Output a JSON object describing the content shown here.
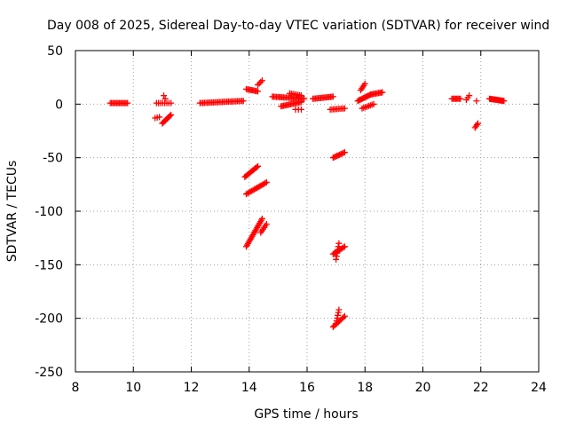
{
  "chart_data": {
    "type": "scatter",
    "title": "Day 008 of 2025, Sidereal Day-to-day VTEC variation (SDTVAR) for receiver wind",
    "xlabel": "GPS time / hours",
    "ylabel": "SDTVAR / TECUs",
    "xlim": [
      8,
      24
    ],
    "ylim": [
      -250,
      50
    ],
    "xticks": [
      8,
      10,
      12,
      14,
      16,
      18,
      20,
      22,
      24
    ],
    "yticks": [
      -250,
      -200,
      -150,
      -100,
      -50,
      0,
      50
    ],
    "grid": true,
    "marker": "+",
    "color": "#ff0000",
    "segments": [
      {
        "x": [
          9.2,
          9.8
        ],
        "y": [
          1,
          1
        ],
        "n": 14
      },
      {
        "x": [
          10.75,
          10.9
        ],
        "y": [
          -13,
          -12
        ],
        "n": 3
      },
      {
        "x": [
          10.8,
          11.3
        ],
        "y": [
          1,
          1
        ],
        "n": 8
      },
      {
        "x": [
          11.05,
          11.1
        ],
        "y": [
          8,
          5
        ],
        "n": 2
      },
      {
        "x": [
          11.0,
          11.3
        ],
        "y": [
          -18,
          -10
        ],
        "n": 10
      },
      {
        "x": [
          12.3,
          13.8
        ],
        "y": [
          1,
          3
        ],
        "n": 30
      },
      {
        "x": [
          13.9,
          14.3
        ],
        "y": [
          14,
          12
        ],
        "n": 10
      },
      {
        "x": [
          14.3,
          14.45
        ],
        "y": [
          18,
          22
        ],
        "n": 4
      },
      {
        "x": [
          13.85,
          14.3
        ],
        "y": [
          -68,
          -58
        ],
        "n": 12
      },
      {
        "x": [
          13.9,
          14.6
        ],
        "y": [
          -84,
          -73
        ],
        "n": 16
      },
      {
        "x": [
          13.9,
          14.45
        ],
        "y": [
          -133,
          -107
        ],
        "n": 20
      },
      {
        "x": [
          14.4,
          14.6
        ],
        "y": [
          -120,
          -112
        ],
        "n": 6
      },
      {
        "x": [
          14.8,
          15.9
        ],
        "y": [
          7,
          5
        ],
        "n": 24
      },
      {
        "x": [
          15.1,
          15.8
        ],
        "y": [
          -2,
          2
        ],
        "n": 16
      },
      {
        "x": [
          15.4,
          15.8
        ],
        "y": [
          10,
          8
        ],
        "n": 8
      },
      {
        "x": [
          15.6,
          15.8
        ],
        "y": [
          -5,
          -5
        ],
        "n": 3
      },
      {
        "x": [
          16.2,
          16.9
        ],
        "y": [
          5,
          7
        ],
        "n": 16
      },
      {
        "x": [
          16.8,
          17.3
        ],
        "y": [
          -5,
          -4
        ],
        "n": 10
      },
      {
        "x": [
          16.9,
          17.3
        ],
        "y": [
          -50,
          -45
        ],
        "n": 10
      },
      {
        "x": [
          16.9,
          17.3
        ],
        "y": [
          -140,
          -133
        ],
        "n": 10
      },
      {
        "x": [
          17.0,
          17.1
        ],
        "y": [
          -145,
          -130
        ],
        "n": 6
      },
      {
        "x": [
          16.9,
          17.3
        ],
        "y": [
          -208,
          -198
        ],
        "n": 10
      },
      {
        "x": [
          17.0,
          17.1
        ],
        "y": [
          -205,
          -192
        ],
        "n": 6
      },
      {
        "x": [
          17.75,
          18.2
        ],
        "y": [
          3,
          9
        ],
        "n": 12
      },
      {
        "x": [
          17.85,
          18.0
        ],
        "y": [
          13,
          19
        ],
        "n": 5
      },
      {
        "x": [
          17.9,
          18.3
        ],
        "y": [
          -4,
          0
        ],
        "n": 8
      },
      {
        "x": [
          18.2,
          18.6
        ],
        "y": [
          9,
          11
        ],
        "n": 10
      },
      {
        "x": [
          21.0,
          21.3
        ],
        "y": [
          5,
          5
        ],
        "n": 8
      },
      {
        "x": [
          21.5,
          21.6
        ],
        "y": [
          4,
          8
        ],
        "n": 3
      },
      {
        "x": [
          21.8,
          21.9
        ],
        "y": [
          -22,
          -18
        ],
        "n": 4
      },
      {
        "x": [
          21.85,
          21.85
        ],
        "y": [
          3,
          3
        ],
        "n": 1
      },
      {
        "x": [
          22.3,
          22.8
        ],
        "y": [
          5,
          3
        ],
        "n": 16
      }
    ]
  }
}
